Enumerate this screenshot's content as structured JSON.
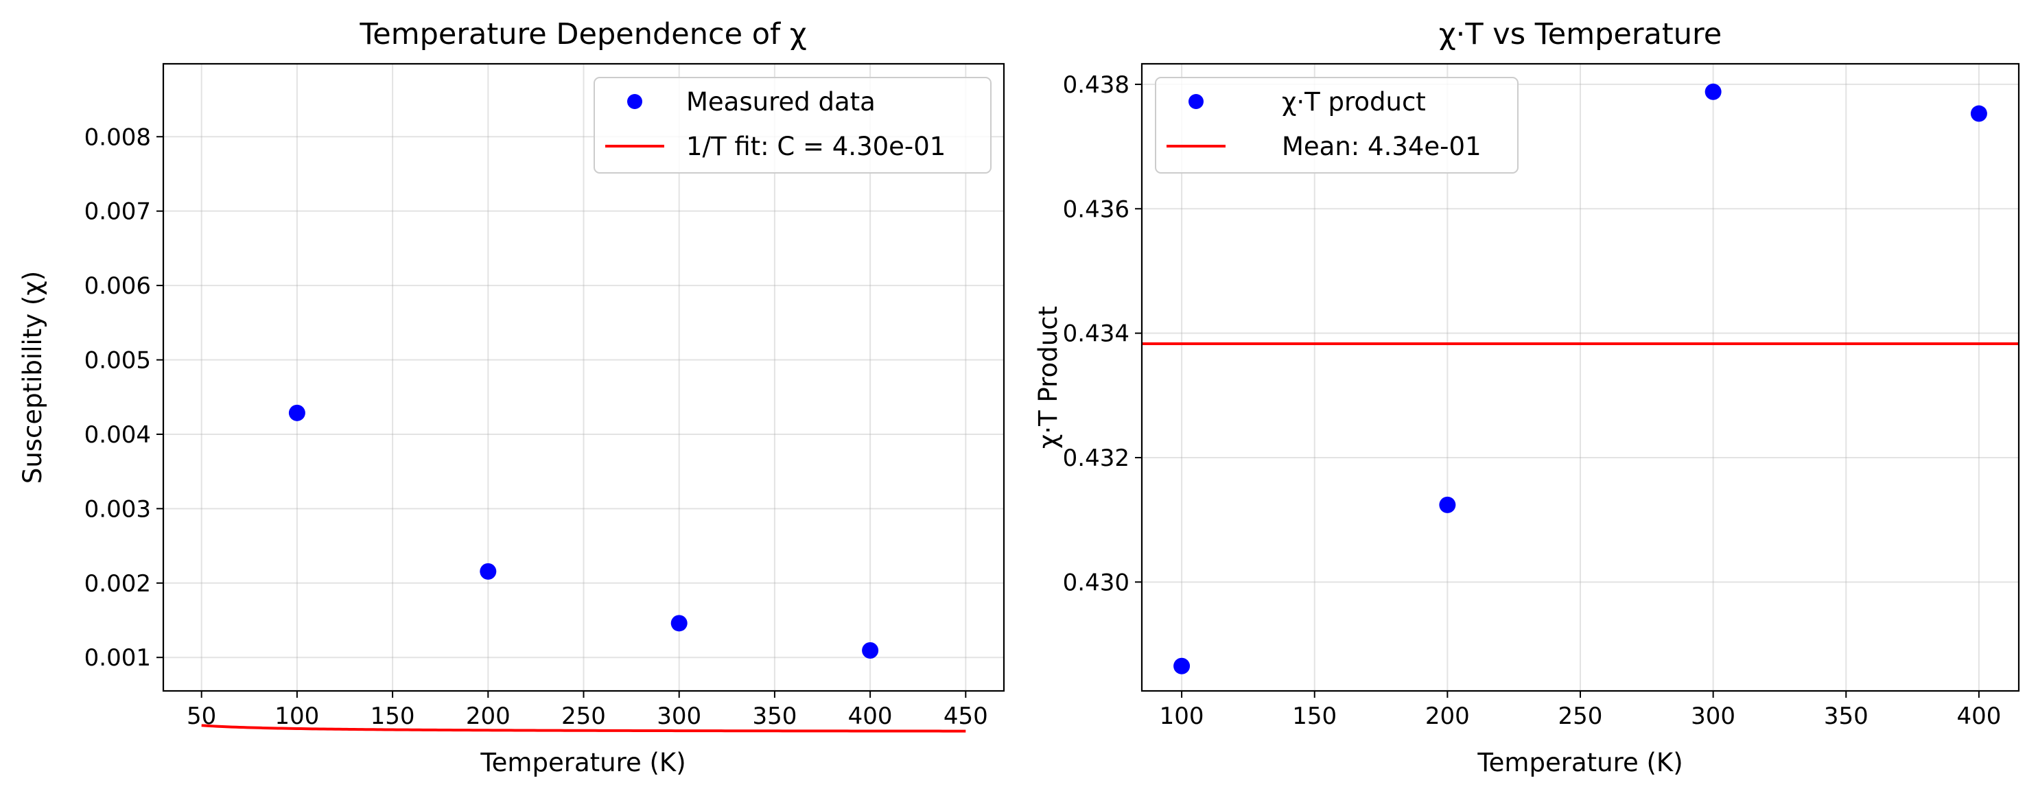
{
  "chart_data": [
    {
      "type": "scatter",
      "title": "Temperature Dependence of χ",
      "xlabel": "Temperature (K)",
      "ylabel": "Susceptibility (χ)",
      "xlim": [
        30,
        470
      ],
      "ylim": [
        0.00055,
        0.00898
      ],
      "xticks": [
        50,
        100,
        150,
        200,
        250,
        300,
        350,
        400,
        450
      ],
      "yticks": [
        0.001,
        0.002,
        0.003,
        0.004,
        0.005,
        0.006,
        0.007,
        0.008
      ],
      "xtick_labels": [
        "50",
        "100",
        "150",
        "200",
        "250",
        "300",
        "350",
        "400",
        "450"
      ],
      "ytick_labels": [
        "0.001",
        "0.002",
        "0.003",
        "0.004",
        "0.005",
        "0.006",
        "0.007",
        "0.008"
      ],
      "grid": true,
      "legend_position": "top-right",
      "series": [
        {
          "name": "Measured data",
          "kind": "scatter",
          "color": "#0000ff",
          "x": [
            100,
            200,
            300,
            400
          ],
          "y": [
            0.004287,
            0.002156,
            0.00146,
            0.001094
          ]
        },
        {
          "name": "1/T fit: C = 4.30e-01",
          "kind": "line",
          "color": "#ff0000",
          "function": "C/T",
          "C": 0.43,
          "x_range": [
            50,
            450
          ]
        }
      ]
    },
    {
      "type": "scatter",
      "title": "χ·T vs Temperature",
      "xlabel": "Temperature (K)",
      "ylabel": "χ·T Product",
      "xlim": [
        85,
        415
      ],
      "ylim": [
        0.42825,
        0.43833
      ],
      "xticks": [
        100,
        150,
        200,
        250,
        300,
        350,
        400
      ],
      "yticks": [
        0.43,
        0.432,
        0.434,
        0.436,
        0.438
      ],
      "xtick_labels": [
        "100",
        "150",
        "200",
        "250",
        "300",
        "350",
        "400"
      ],
      "ytick_labels": [
        "0.430",
        "0.432",
        "0.434",
        "0.436",
        "0.438"
      ],
      "grid": true,
      "legend_position": "top-left",
      "series": [
        {
          "name": "χ·T product",
          "kind": "scatter",
          "color": "#0000ff",
          "x": [
            100,
            200,
            300,
            400
          ],
          "y": [
            0.42865,
            0.43124,
            0.43788,
            0.43753
          ]
        },
        {
          "name": "Mean: 4.34e-01",
          "kind": "hline",
          "color": "#ff0000",
          "y": 0.43383
        }
      ]
    }
  ]
}
